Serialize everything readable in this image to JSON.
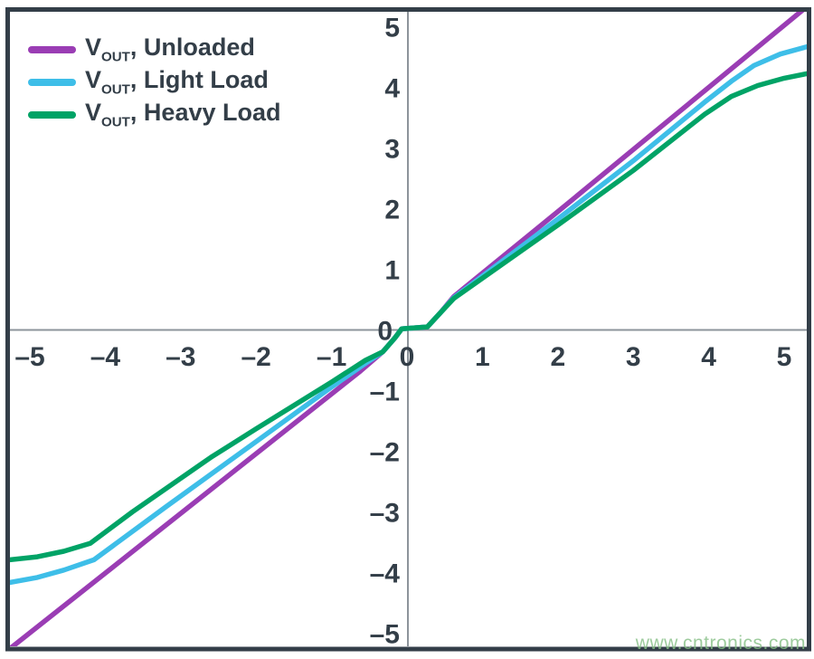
{
  "legend": {
    "items": [
      {
        "prefix": "V",
        "sub": "OUT",
        "suffix": ", Unloaded",
        "color": "#9A3DB4"
      },
      {
        "prefix": "V",
        "sub": "OUT",
        "suffix": ", Light Load",
        "color": "#3EBEE8"
      },
      {
        "prefix": "V",
        "sub": "OUT",
        "suffix": ", Heavy Load",
        "color": "#00A366"
      }
    ]
  },
  "watermark": {
    "text": "www.cntronics.com",
    "color": "#85BF85"
  },
  "axes": {
    "border_color": "#333E48",
    "axis_color": "#8D949B",
    "label_color": "#333E48"
  },
  "chart_data": {
    "type": "line",
    "title": "",
    "xlabel": "",
    "ylabel": "",
    "xlim": [
      -5.34,
      5.37
    ],
    "ylim": [
      -5.3,
      5.3
    ],
    "grid": false,
    "legend_position": "top-left",
    "x_ticks": [
      -5,
      -4,
      -3,
      -2,
      -1,
      0,
      1,
      2,
      3,
      4,
      5
    ],
    "y_ticks": [
      5,
      4,
      3,
      2,
      1,
      0,
      -1,
      -2,
      -3,
      -4,
      -5
    ],
    "series": [
      {
        "name": "VOUT, Unloaded",
        "color": "#9A3DB4",
        "points": [
          [
            -5.34,
            -5.33
          ],
          [
            -0.62,
            -0.68
          ],
          [
            -0.32,
            -0.36
          ],
          [
            -0.16,
            -0.13
          ],
          [
            -0.07,
            0.02
          ],
          [
            0.27,
            0.05
          ],
          [
            0.44,
            0.28
          ],
          [
            0.62,
            0.55
          ],
          [
            2.0,
            1.95
          ],
          [
            5.3,
            5.33
          ]
        ]
      },
      {
        "name": "VOUT, Light Load",
        "color": "#3EBEE8",
        "points": [
          [
            -5.34,
            -4.18
          ],
          [
            -4.9,
            -4.08
          ],
          [
            -4.55,
            -3.96
          ],
          [
            -4.15,
            -3.79
          ],
          [
            -3.2,
            -2.92
          ],
          [
            -2.0,
            -1.84
          ],
          [
            -1.0,
            -0.94
          ],
          [
            -0.55,
            -0.55
          ],
          [
            -0.32,
            -0.36
          ],
          [
            -0.16,
            -0.13
          ],
          [
            -0.07,
            0.02
          ],
          [
            0.27,
            0.05
          ],
          [
            0.44,
            0.28
          ],
          [
            0.62,
            0.53
          ],
          [
            2.0,
            1.83
          ],
          [
            3.0,
            2.79
          ],
          [
            3.95,
            3.76
          ],
          [
            4.3,
            4.1
          ],
          [
            4.6,
            4.36
          ],
          [
            4.95,
            4.55
          ],
          [
            5.36,
            4.69
          ]
        ]
      },
      {
        "name": "VOUT, Heavy Load",
        "color": "#00A366",
        "points": [
          [
            -5.34,
            -3.8
          ],
          [
            -4.9,
            -3.74
          ],
          [
            -4.55,
            -3.65
          ],
          [
            -4.2,
            -3.52
          ],
          [
            -3.64,
            -3.0
          ],
          [
            -2.6,
            -2.1
          ],
          [
            -2.0,
            -1.63
          ],
          [
            -1.0,
            -0.86
          ],
          [
            -0.55,
            -0.5
          ],
          [
            -0.32,
            -0.36
          ],
          [
            -0.16,
            -0.13
          ],
          [
            -0.07,
            0.02
          ],
          [
            0.27,
            0.05
          ],
          [
            0.44,
            0.28
          ],
          [
            0.62,
            0.52
          ],
          [
            2.0,
            1.73
          ],
          [
            3.0,
            2.63
          ],
          [
            3.95,
            3.56
          ],
          [
            4.3,
            3.85
          ],
          [
            4.65,
            4.03
          ],
          [
            5.0,
            4.15
          ],
          [
            5.36,
            4.24
          ]
        ]
      }
    ]
  }
}
